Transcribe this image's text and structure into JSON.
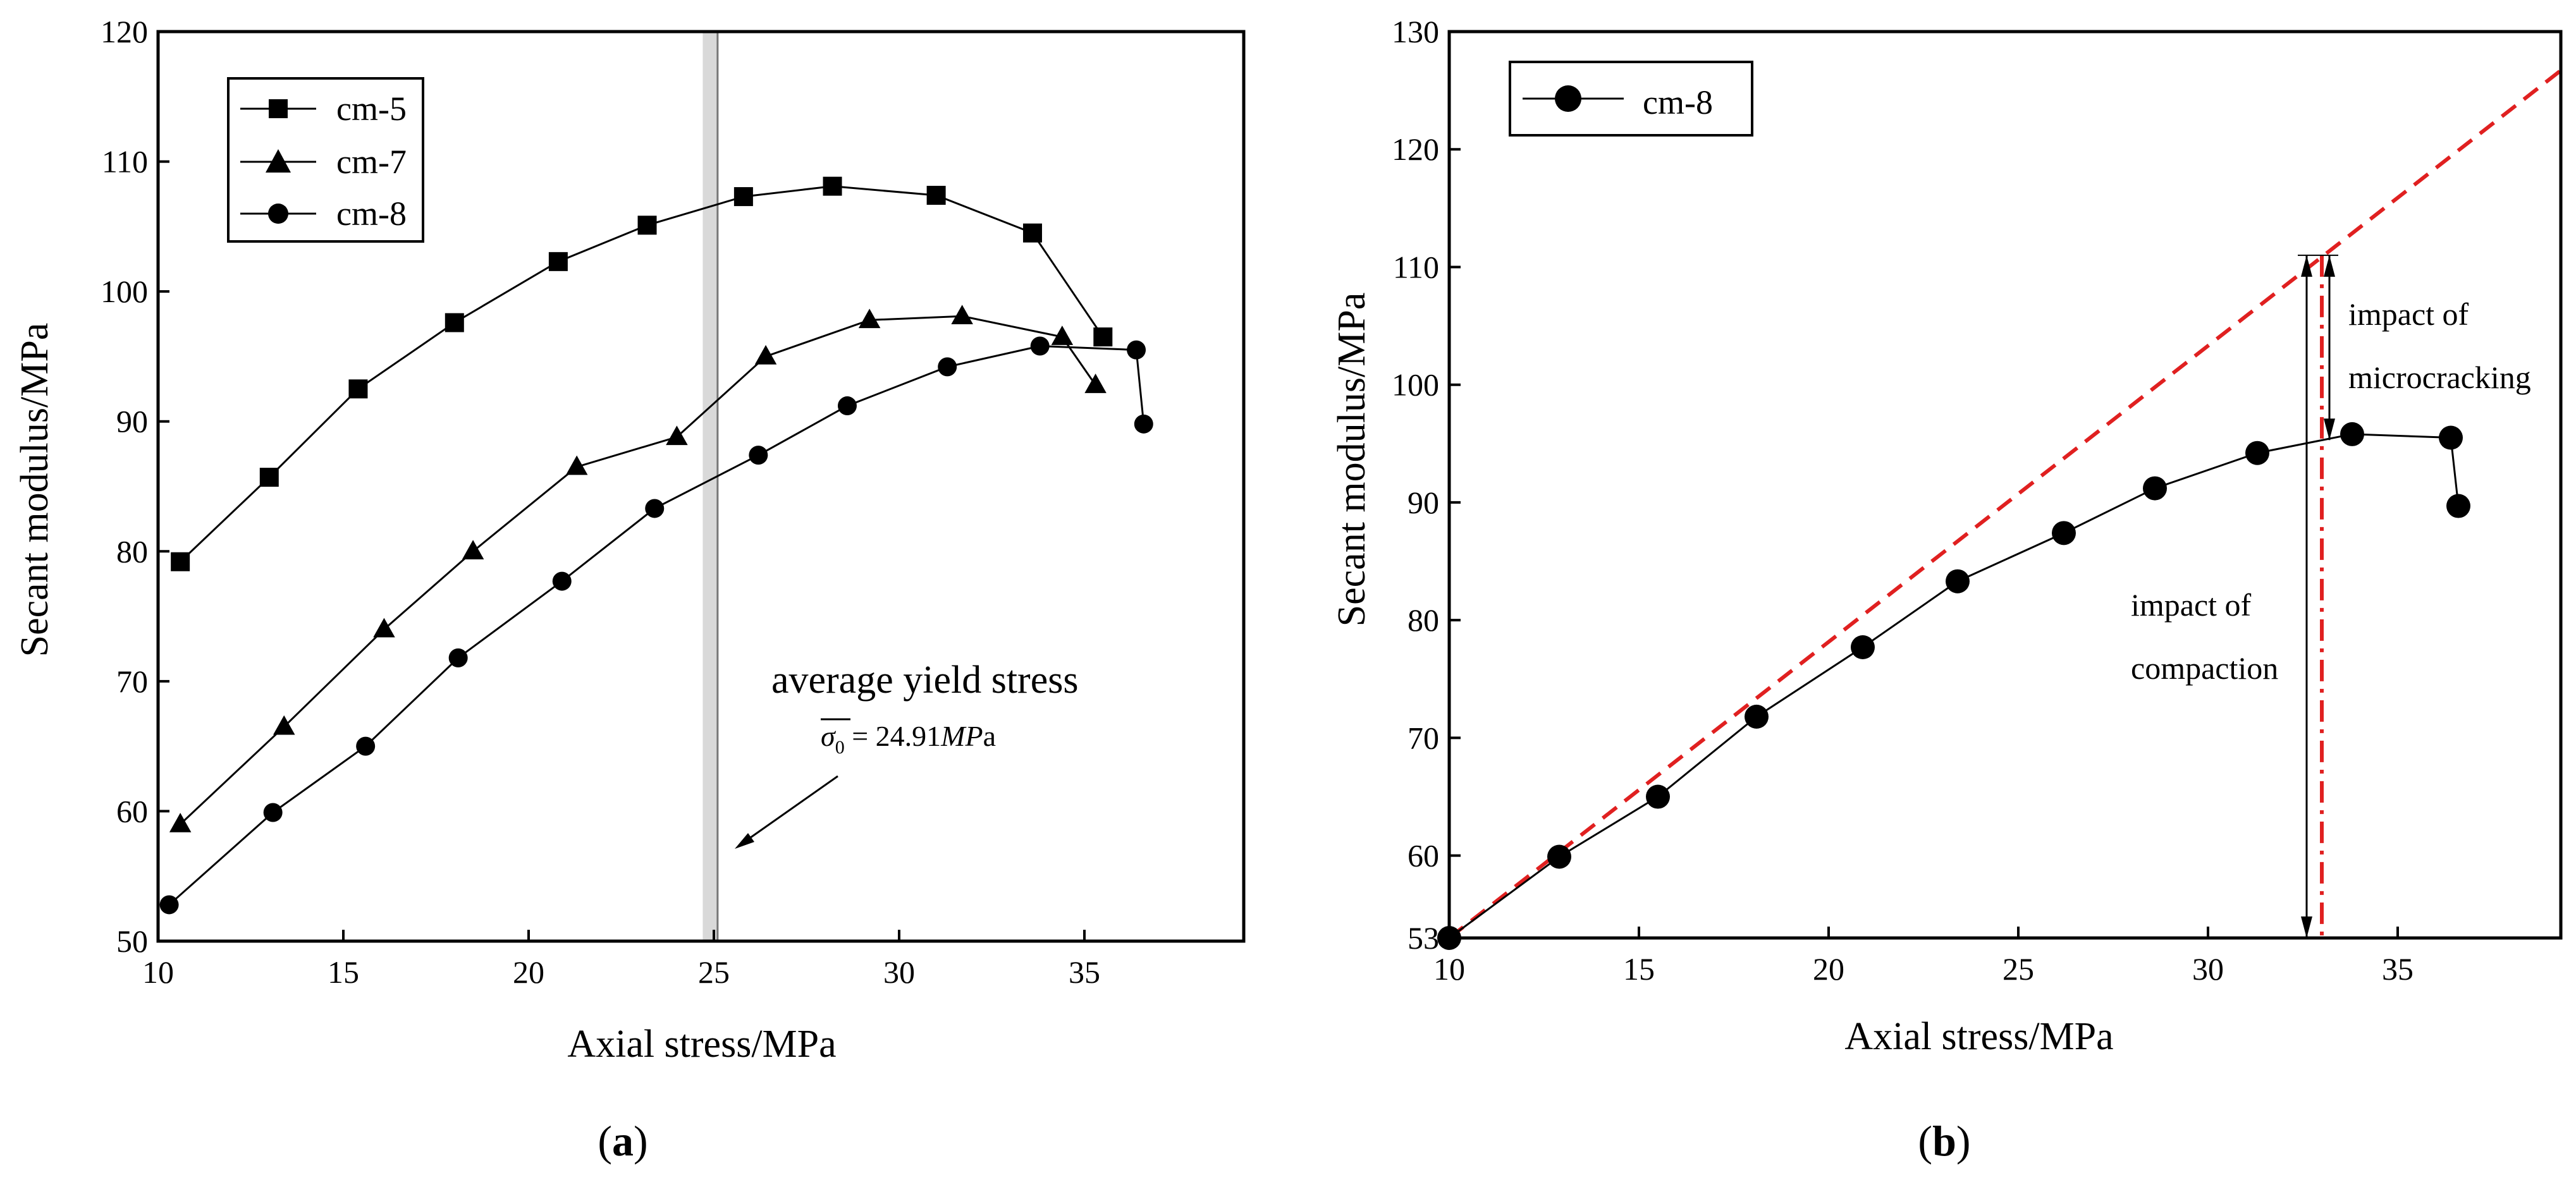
{
  "chart_data": [
    {
      "type": "line",
      "panel_label": "(a)",
      "panel_letter": "a",
      "xlabel": "Axial stress/MPa",
      "ylabel": "Secant modulus/MPa",
      "xlim": [
        10,
        39.3
      ],
      "ylim": [
        50,
        120
      ],
      "xticks": [
        10,
        15,
        20,
        25,
        30,
        35
      ],
      "yticks": [
        50,
        60,
        70,
        80,
        90,
        100,
        110,
        120
      ],
      "legend_position": "top-left",
      "series": [
        {
          "name": "cm-5",
          "marker": "square",
          "x": [
            10.6,
            13.0,
            15.4,
            18.0,
            20.8,
            23.2,
            25.8,
            28.2,
            31.0,
            33.6,
            35.5
          ],
          "y": [
            79.2,
            85.7,
            92.5,
            97.6,
            102.3,
            105.1,
            107.3,
            108.1,
            107.4,
            104.5,
            96.5
          ]
        },
        {
          "name": "cm-7",
          "marker": "triangle",
          "x": [
            10.6,
            13.4,
            16.1,
            18.5,
            21.3,
            24.0,
            26.4,
            29.2,
            31.7,
            34.4,
            35.3
          ],
          "y": [
            59.0,
            66.5,
            74.0,
            80.0,
            86.5,
            88.8,
            95.0,
            97.8,
            98.1,
            96.5,
            92.8
          ]
        },
        {
          "name": "cm-8",
          "marker": "circle",
          "x": [
            10.3,
            13.1,
            15.6,
            18.1,
            20.9,
            23.4,
            26.2,
            28.6,
            31.3,
            33.8,
            36.4,
            36.6
          ],
          "y": [
            52.8,
            59.9,
            65.0,
            71.8,
            77.7,
            83.3,
            87.4,
            91.2,
            94.2,
            95.8,
            95.5,
            89.8
          ]
        }
      ],
      "annotations": {
        "yield_band": [
          24.7,
          25.1
        ],
        "yield_title": "average yield stress",
        "yield_symbol": "σ",
        "yield_subscript": "0",
        "yield_value": " = 24.91",
        "yield_unit_italic": "MP",
        "yield_unit_tail": "a"
      }
    },
    {
      "type": "line",
      "panel_label": "(b)",
      "panel_letter": "b",
      "xlabel": "Axial stress/MPa",
      "ylabel": "Secant modulus/MPa",
      "xlim": [
        10,
        39.3
      ],
      "ylim": [
        53,
        130
      ],
      "xticks": [
        10,
        15,
        20,
        25,
        30,
        35
      ],
      "yticks": [
        60,
        70,
        80,
        90,
        100,
        110,
        120,
        130
      ],
      "ytick_extra": 53,
      "legend_position": "top-left",
      "series": [
        {
          "name": "cm-8",
          "marker": "circle",
          "x": [
            10.0,
            12.9,
            15.5,
            18.1,
            20.9,
            23.4,
            26.2,
            28.6,
            31.3,
            33.8,
            36.4,
            36.6
          ],
          "y": [
            53.0,
            59.9,
            65.0,
            71.8,
            77.7,
            83.3,
            87.4,
            91.2,
            94.2,
            95.8,
            95.5,
            89.7
          ]
        }
      ],
      "reference_line": {
        "color": "#e02020",
        "style": "dashed",
        "x": [
          10.0,
          39.3
        ],
        "y": [
          53.0,
          126.7
        ]
      },
      "vertical_reference": {
        "color": "#e02020",
        "style": "dash-dot",
        "x": 33.0
      },
      "arrows": {
        "compaction_x": 32.6,
        "compaction_from": 53.0,
        "compaction_to": 111.0,
        "micro_x": 33.2,
        "micro_from": 111.0,
        "micro_to": 95.3
      },
      "annotations": {
        "compaction_line1": "impact of",
        "compaction_line2": "compaction",
        "micro_line1": "impact of",
        "micro_line2": "microcracking"
      }
    }
  ]
}
